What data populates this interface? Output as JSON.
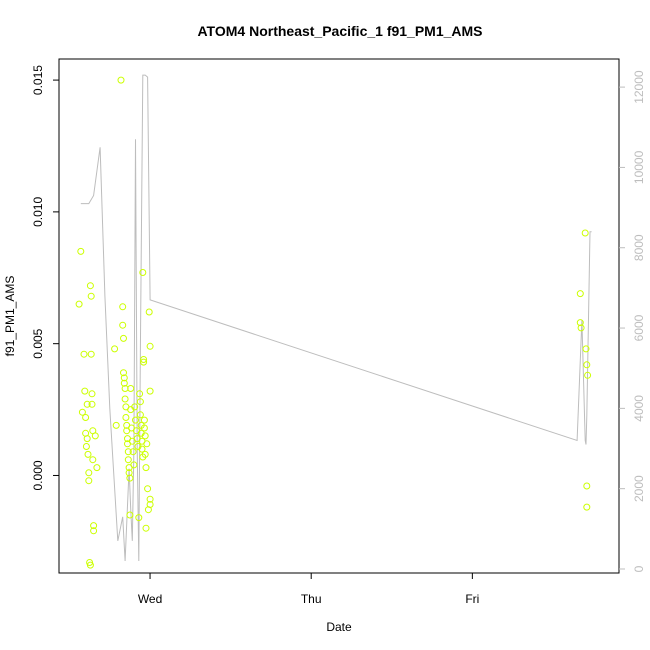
{
  "chart_data": {
    "type": "scatter",
    "title": "ATOM4 Northeast_Pacific_1 f91_PM1_AMS",
    "xlabel": "Date",
    "ylabel": "f91_PM1_AMS",
    "x_unit": "days since Tue 00:00",
    "x_ticks": [
      {
        "label": "Wed",
        "value": 1
      },
      {
        "label": "Thu",
        "value": 2
      },
      {
        "label": "Fri",
        "value": 3
      }
    ],
    "xlim": [
      0.435,
      3.91
    ],
    "ylim": [
      -0.0037,
      0.0158
    ],
    "y_ticks": [
      0.0,
      0.005,
      0.01,
      0.015
    ],
    "y_tick_labels": [
      "0.000",
      "0.005",
      "0.010",
      "0.015"
    ],
    "y2lim": [
      -100,
      12700
    ],
    "y2_ticks": [
      0,
      2000,
      4000,
      6000,
      8000,
      10000,
      12000
    ],
    "y2_tick_labels": [
      "0",
      "2000",
      "4000",
      "6000",
      "8000",
      "10000",
      "12000"
    ],
    "point_color": "#ccff00",
    "line_color": "#bdbdbd",
    "grid": false,
    "legend": "none",
    "points": [
      {
        "x": 0.56,
        "y": 0.0065
      },
      {
        "x": 0.57,
        "y": 0.0085
      },
      {
        "x": 0.58,
        "y": 0.0024
      },
      {
        "x": 0.59,
        "y": 0.0046
      },
      {
        "x": 0.595,
        "y": 0.0032
      },
      {
        "x": 0.6,
        "y": 0.0022
      },
      {
        "x": 0.6,
        "y": 0.0016
      },
      {
        "x": 0.605,
        "y": 0.0011
      },
      {
        "x": 0.61,
        "y": 0.0027
      },
      {
        "x": 0.61,
        "y": 0.0014
      },
      {
        "x": 0.615,
        "y": 0.0008
      },
      {
        "x": 0.62,
        "y": 0.0001
      },
      {
        "x": 0.62,
        "y": -0.0002
      },
      {
        "x": 0.625,
        "y": -0.0033
      },
      {
        "x": 0.63,
        "y": -0.0034
      },
      {
        "x": 0.63,
        "y": 0.0072
      },
      {
        "x": 0.635,
        "y": 0.0068
      },
      {
        "x": 0.635,
        "y": 0.0046
      },
      {
        "x": 0.64,
        "y": 0.0031
      },
      {
        "x": 0.64,
        "y": 0.0027
      },
      {
        "x": 0.645,
        "y": 0.0017
      },
      {
        "x": 0.645,
        "y": 0.0006
      },
      {
        "x": 0.65,
        "y": -0.0019
      },
      {
        "x": 0.65,
        "y": -0.0021
      },
      {
        "x": 0.66,
        "y": 0.0015
      },
      {
        "x": 0.67,
        "y": 0.0003
      },
      {
        "x": 0.78,
        "y": 0.0048
      },
      {
        "x": 0.79,
        "y": 0.0019
      },
      {
        "x": 0.82,
        "y": 0.015
      },
      {
        "x": 0.83,
        "y": 0.0064
      },
      {
        "x": 0.83,
        "y": 0.0057
      },
      {
        "x": 0.835,
        "y": 0.0052
      },
      {
        "x": 0.835,
        "y": 0.0039
      },
      {
        "x": 0.84,
        "y": 0.0037
      },
      {
        "x": 0.84,
        "y": 0.0035
      },
      {
        "x": 0.845,
        "y": 0.0033
      },
      {
        "x": 0.845,
        "y": 0.0029
      },
      {
        "x": 0.85,
        "y": 0.0026
      },
      {
        "x": 0.85,
        "y": 0.0022
      },
      {
        "x": 0.855,
        "y": 0.0019
      },
      {
        "x": 0.855,
        "y": 0.0017
      },
      {
        "x": 0.86,
        "y": 0.0014
      },
      {
        "x": 0.86,
        "y": 0.0012
      },
      {
        "x": 0.865,
        "y": 0.0009
      },
      {
        "x": 0.865,
        "y": 0.0006
      },
      {
        "x": 0.87,
        "y": 0.0003
      },
      {
        "x": 0.87,
        "y": 0.0001
      },
      {
        "x": 0.875,
        "y": -0.0001
      },
      {
        "x": 0.875,
        "y": -0.0015
      },
      {
        "x": 0.88,
        "y": 0.0033
      },
      {
        "x": 0.88,
        "y": 0.0025
      },
      {
        "x": 0.885,
        "y": 0.0018
      },
      {
        "x": 0.89,
        "y": 0.0013
      },
      {
        "x": 0.895,
        "y": 0.0009
      },
      {
        "x": 0.9,
        "y": 0.0004
      },
      {
        "x": 0.905,
        "y": 0.0026
      },
      {
        "x": 0.91,
        "y": 0.0021
      },
      {
        "x": 0.915,
        "y": 0.0017
      },
      {
        "x": 0.92,
        "y": 0.0014
      },
      {
        "x": 0.925,
        "y": 0.0011
      },
      {
        "x": 0.93,
        "y": -0.0016
      },
      {
        "x": 0.935,
        "y": 0.0031
      },
      {
        "x": 0.94,
        "y": 0.0028
      },
      {
        "x": 0.94,
        "y": 0.0023
      },
      {
        "x": 0.945,
        "y": 0.0019
      },
      {
        "x": 0.945,
        "y": 0.0016
      },
      {
        "x": 0.95,
        "y": 0.0013
      },
      {
        "x": 0.95,
        "y": 0.001
      },
      {
        "x": 0.955,
        "y": 0.0007
      },
      {
        "x": 0.955,
        "y": 0.0077
      },
      {
        "x": 0.96,
        "y": 0.0044
      },
      {
        "x": 0.96,
        "y": 0.0043
      },
      {
        "x": 0.965,
        "y": 0.0021
      },
      {
        "x": 0.965,
        "y": 0.0018
      },
      {
        "x": 0.97,
        "y": 0.0015
      },
      {
        "x": 0.97,
        "y": 0.0008
      },
      {
        "x": 0.975,
        "y": 0.0003
      },
      {
        "x": 0.975,
        "y": -0.002
      },
      {
        "x": 0.98,
        "y": 0.0012
      },
      {
        "x": 0.985,
        "y": -0.0005
      },
      {
        "x": 0.99,
        "y": -0.0013
      },
      {
        "x": 0.995,
        "y": 0.0062
      },
      {
        "x": 1.0,
        "y": -0.0011
      },
      {
        "x": 1.0,
        "y": 0.0049
      },
      {
        "x": 1.0,
        "y": 0.0032
      },
      {
        "x": 1.0,
        "y": -0.0009
      },
      {
        "x": 3.67,
        "y": 0.0069
      },
      {
        "x": 3.67,
        "y": 0.0058
      },
      {
        "x": 3.675,
        "y": 0.0056
      },
      {
        "x": 3.7,
        "y": 0.0092
      },
      {
        "x": 3.705,
        "y": 0.0048
      },
      {
        "x": 3.71,
        "y": 0.0042
      },
      {
        "x": 3.715,
        "y": 0.0038
      },
      {
        "x": 3.71,
        "y": -0.0004
      },
      {
        "x": 3.71,
        "y": -0.0012
      }
    ],
    "series": [
      {
        "axis": "right",
        "points": [
          {
            "x": 0.57,
            "y": 9100
          },
          {
            "x": 0.58,
            "y": 9100
          },
          {
            "x": 0.62,
            "y": 9100
          },
          {
            "x": 0.65,
            "y": 9300
          },
          {
            "x": 0.69,
            "y": 10500
          },
          {
            "x": 0.72,
            "y": 6800
          },
          {
            "x": 0.75,
            "y": 4000
          },
          {
            "x": 0.8,
            "y": 700
          },
          {
            "x": 0.83,
            "y": 1300
          },
          {
            "x": 0.845,
            "y": 200
          },
          {
            "x": 0.87,
            "y": 2500
          },
          {
            "x": 0.88,
            "y": 1500
          },
          {
            "x": 0.89,
            "y": 700
          },
          {
            "x": 0.9,
            "y": 3000
          },
          {
            "x": 0.91,
            "y": 10700
          },
          {
            "x": 0.92,
            "y": 3000
          },
          {
            "x": 0.93,
            "y": 200
          },
          {
            "x": 0.94,
            "y": 5500
          },
          {
            "x": 0.955,
            "y": 12300
          },
          {
            "x": 0.97,
            "y": 12300
          },
          {
            "x": 0.985,
            "y": 12250
          },
          {
            "x": 1.0,
            "y": 6700
          },
          {
            "x": 3.65,
            "y": 3200
          },
          {
            "x": 3.68,
            "y": 6200
          },
          {
            "x": 3.7,
            "y": 3200
          },
          {
            "x": 3.705,
            "y": 3100
          },
          {
            "x": 3.71,
            "y": 3800
          },
          {
            "x": 3.73,
            "y": 8400
          },
          {
            "x": 3.74,
            "y": 8400
          }
        ]
      }
    ]
  }
}
